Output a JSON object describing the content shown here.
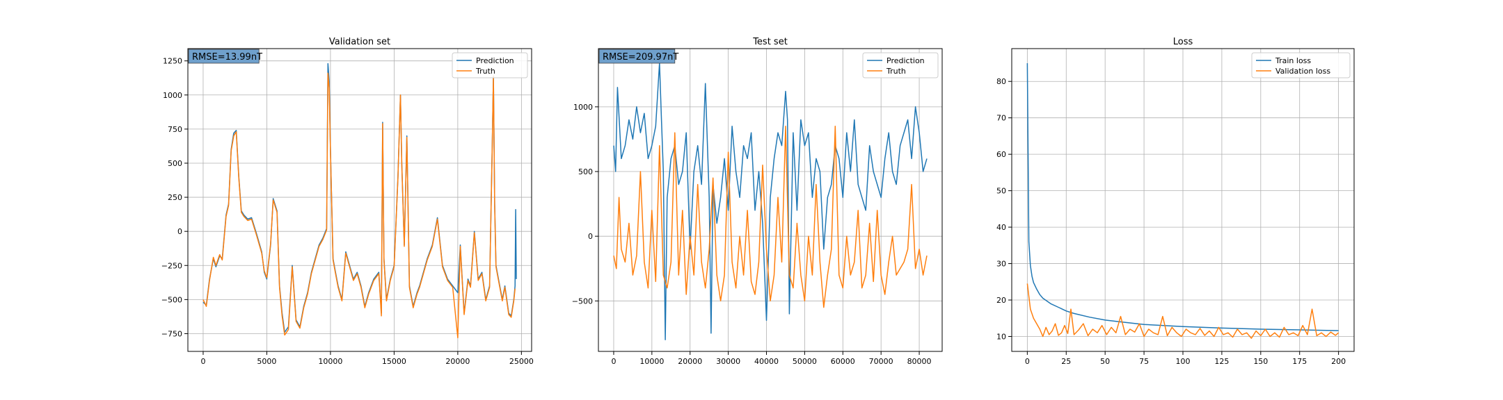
{
  "colors": {
    "blue": "#1f77b4",
    "orange": "#ff7f0e",
    "grid": "#b0b0b0",
    "rmse_box": "#6fa0cc"
  },
  "chart_data": [
    {
      "type": "line",
      "title": "Validation set",
      "xlabel": "",
      "ylabel": "",
      "xlim": [
        -1200,
        25800
      ],
      "ylim": [
        -880,
        1340
      ],
      "xticks": [
        0,
        5000,
        10000,
        15000,
        20000,
        25000
      ],
      "yticks": [
        -750,
        -500,
        -250,
        0,
        250,
        500,
        750,
        1000,
        1250
      ],
      "grid": true,
      "legend": "top-right",
      "annotation": "RMSE=13.99nT",
      "series": [
        {
          "name": "Prediction",
          "color": "#1f77b4",
          "x": [
            0,
            250,
            500,
            800,
            1000,
            1300,
            1500,
            1800,
            2000,
            2200,
            2400,
            2600,
            2800,
            3000,
            3200,
            3500,
            3800,
            4200,
            4600,
            4800,
            5000,
            5300,
            5500,
            5800,
            6000,
            6200,
            6400,
            6700,
            7000,
            7300,
            7600,
            7900,
            8200,
            8500,
            8800,
            9100,
            9400,
            9700,
            9800,
            9900,
            10000,
            10200,
            10400,
            10600,
            10900,
            11200,
            11500,
            11800,
            12100,
            12400,
            12700,
            13000,
            13400,
            13800,
            14000,
            14100,
            14200,
            14400,
            14700,
            15000,
            15300,
            15500,
            15600,
            15800,
            16000,
            16200,
            16500,
            16800,
            17000,
            17300,
            17600,
            18000,
            18400,
            18800,
            19200,
            19600,
            20000,
            20200,
            20500,
            20800,
            21000,
            21300,
            21600,
            21900,
            22200,
            22500,
            22700,
            22800,
            22900,
            23000,
            23200,
            23500,
            23700,
            24000,
            24200,
            24400,
            24500,
            24550,
            24600
          ],
          "y": [
            -520,
            -540,
            -350,
            -200,
            -260,
            -180,
            -200,
            120,
            200,
            600,
            720,
            740,
            400,
            150,
            120,
            90,
            100,
            -20,
            -150,
            -300,
            -350,
            -100,
            240,
            150,
            -400,
            -600,
            -740,
            -700,
            -250,
            -650,
            -700,
            -550,
            -450,
            -300,
            -200,
            -100,
            -50,
            20,
            1230,
            1100,
            600,
            -200,
            -300,
            -400,
            -500,
            -150,
            -250,
            -350,
            -300,
            -400,
            -550,
            -450,
            -350,
            -300,
            -600,
            800,
            -200,
            -500,
            -350,
            -250,
            400,
            1000,
            500,
            -100,
            700,
            -400,
            -550,
            -450,
            -400,
            -300,
            -200,
            -100,
            100,
            -250,
            -350,
            -400,
            -450,
            -100,
            -600,
            -350,
            -400,
            0,
            -350,
            -300,
            -500,
            -400,
            600,
            1140,
            200,
            -250,
            -350,
            -500,
            -400,
            -600,
            -620,
            -500,
            -400,
            160,
            -350
          ]
        },
        {
          "name": "Truth",
          "color": "#ff7f0e",
          "x": [
            0,
            250,
            500,
            800,
            1000,
            1300,
            1500,
            1800,
            2000,
            2200,
            2400,
            2600,
            2800,
            3000,
            3200,
            3500,
            3800,
            4200,
            4600,
            4800,
            5000,
            5300,
            5500,
            5800,
            6000,
            6200,
            6400,
            6700,
            7000,
            7300,
            7600,
            7900,
            8200,
            8500,
            8800,
            9100,
            9400,
            9700,
            9800,
            9900,
            10000,
            10200,
            10400,
            10600,
            10900,
            11200,
            11500,
            11800,
            12100,
            12400,
            12700,
            13000,
            13400,
            13800,
            14000,
            14100,
            14200,
            14400,
            14700,
            15000,
            15300,
            15500,
            15600,
            15800,
            16000,
            16200,
            16500,
            16800,
            17000,
            17300,
            17600,
            18000,
            18400,
            18800,
            19200,
            19600,
            20000,
            20200,
            20500,
            20800,
            21000,
            21300,
            21600,
            21900,
            22200,
            22500,
            22700,
            22800,
            22900,
            23000,
            23200,
            23500,
            23700,
            24000,
            24200,
            24400,
            24500
          ],
          "y": [
            -500,
            -550,
            -360,
            -190,
            -250,
            -170,
            -210,
            110,
            190,
            590,
            700,
            730,
            390,
            140,
            110,
            80,
            90,
            -30,
            -160,
            -290,
            -340,
            -90,
            230,
            140,
            -410,
            -620,
            -760,
            -720,
            -260,
            -660,
            -710,
            -560,
            -460,
            -310,
            -210,
            -110,
            -60,
            10,
            1160,
            1050,
            590,
            -210,
            -310,
            -410,
            -510,
            -160,
            -260,
            -360,
            -310,
            -410,
            -560,
            -460,
            -360,
            -310,
            -620,
            790,
            -210,
            -510,
            -360,
            -260,
            390,
            1000,
            490,
            -110,
            690,
            -410,
            -560,
            -460,
            -410,
            -310,
            -210,
            -110,
            90,
            -260,
            -360,
            -410,
            -780,
            -110,
            -610,
            -360,
            -410,
            -10,
            -360,
            -310,
            -510,
            -410,
            590,
            1140,
            190,
            -260,
            -360,
            -510,
            -410,
            -610,
            -630,
            -510,
            -420
          ]
        }
      ]
    },
    {
      "type": "line",
      "title": "Test set",
      "xlabel": "",
      "ylabel": "",
      "xlim": [
        -4000,
        86000
      ],
      "ylim": [
        -890,
        1450
      ],
      "xticks": [
        0,
        10000,
        20000,
        30000,
        40000,
        50000,
        60000,
        70000,
        80000
      ],
      "yticks": [
        -500,
        0,
        500,
        1000
      ],
      "grid": true,
      "legend": "top-right",
      "annotation": "RMSE=209.97nT",
      "series": [
        {
          "name": "Prediction",
          "color": "#1f77b4",
          "x": [
            0,
            500,
            1000,
            2000,
            3000,
            4000,
            5000,
            6000,
            7000,
            8000,
            9000,
            10000,
            11000,
            12000,
            12500,
            13000,
            13500,
            14000,
            15000,
            16000,
            17000,
            18000,
            19000,
            20000,
            21000,
            22000,
            23000,
            24000,
            25000,
            25500,
            26000,
            27000,
            28000,
            29000,
            30000,
            31000,
            32000,
            33000,
            34000,
            35000,
            36000,
            37000,
            38000,
            39000,
            40000,
            41000,
            42000,
            43000,
            44000,
            45000,
            45500,
            46000,
            47000,
            48000,
            49000,
            50000,
            51000,
            52000,
            53000,
            54000,
            55000,
            56000,
            57000,
            58000,
            59000,
            60000,
            61000,
            62000,
            63000,
            64000,
            65000,
            66000,
            67000,
            68000,
            69000,
            70000,
            71000,
            72000,
            73000,
            74000,
            75000,
            76000,
            77000,
            78000,
            79000,
            80000,
            81000,
            82000
          ],
          "y": [
            700,
            500,
            1150,
            600,
            700,
            900,
            750,
            1000,
            800,
            950,
            600,
            700,
            850,
            1340,
            900,
            500,
            -800,
            300,
            600,
            700,
            400,
            500,
            800,
            -100,
            500,
            700,
            400,
            1180,
            300,
            -750,
            400,
            100,
            300,
            600,
            200,
            850,
            500,
            300,
            700,
            600,
            800,
            200,
            500,
            100,
            -650,
            300,
            600,
            800,
            700,
            1120,
            900,
            -600,
            800,
            200,
            900,
            700,
            800,
            300,
            600,
            500,
            -100,
            300,
            400,
            700,
            600,
            300,
            800,
            500,
            900,
            400,
            300,
            200,
            700,
            500,
            400,
            300,
            600,
            800,
            500,
            400,
            700,
            800,
            900,
            600,
            1000,
            800,
            500,
            600
          ]
        },
        {
          "name": "Truth",
          "color": "#ff7f0e",
          "x": [
            0,
            700,
            1400,
            2000,
            3000,
            4000,
            5000,
            6000,
            7000,
            8000,
            9000,
            10000,
            11000,
            12000,
            13000,
            14000,
            15000,
            16000,
            17000,
            18000,
            19000,
            20000,
            21000,
            22000,
            23000,
            24000,
            25000,
            26000,
            27000,
            28000,
            29000,
            30000,
            31000,
            32000,
            33000,
            34000,
            35000,
            36000,
            37000,
            38000,
            39000,
            40000,
            41000,
            42000,
            43000,
            44000,
            45000,
            46000,
            47000,
            48000,
            49000,
            50000,
            51000,
            52000,
            53000,
            54000,
            55000,
            56000,
            57000,
            58000,
            59000,
            60000,
            61000,
            62000,
            63000,
            64000,
            65000,
            66000,
            67000,
            68000,
            69000,
            70000,
            71000,
            72000,
            73000,
            74000,
            75000,
            76000,
            77000,
            78000,
            79000,
            80000,
            81000,
            82000
          ],
          "y": [
            -150,
            -250,
            300,
            -100,
            -200,
            100,
            -300,
            -150,
            500,
            -200,
            -400,
            200,
            -350,
            700,
            -300,
            -400,
            -200,
            800,
            -300,
            200,
            -450,
            0,
            -300,
            400,
            -200,
            -400,
            -100,
            450,
            -300,
            -500,
            -300,
            650,
            -200,
            -400,
            0,
            -300,
            200,
            -350,
            -450,
            -200,
            550,
            -100,
            -500,
            -300,
            300,
            -200,
            850,
            -300,
            -400,
            100,
            -300,
            -500,
            0,
            -300,
            400,
            -200,
            -550,
            -300,
            -100,
            850,
            -300,
            -400,
            0,
            -300,
            -200,
            200,
            -400,
            -300,
            100,
            -350,
            200,
            -300,
            -450,
            -200,
            0,
            -300,
            -250,
            -200,
            -100,
            400,
            -250,
            -100,
            -300,
            -150
          ]
        }
      ]
    },
    {
      "type": "line",
      "title": "Loss",
      "xlabel": "",
      "ylabel": "",
      "xlim": [
        -10,
        210
      ],
      "ylim": [
        5.9,
        89
      ],
      "xticks": [
        0,
        25,
        50,
        75,
        100,
        125,
        150,
        175,
        200
      ],
      "yticks": [
        10,
        20,
        30,
        40,
        50,
        60,
        70,
        80
      ],
      "grid": true,
      "legend": "top-right",
      "series": [
        {
          "name": "Train loss",
          "color": "#1f77b4",
          "x": [
            0,
            1,
            2,
            3,
            4,
            6,
            8,
            10,
            15,
            20,
            25,
            30,
            40,
            50,
            60,
            75,
            100,
            125,
            150,
            175,
            200
          ],
          "y": [
            85,
            36,
            29.5,
            26.5,
            24.8,
            23,
            21.5,
            20.5,
            19,
            18,
            17,
            16.3,
            15.3,
            14.5,
            14,
            13.3,
            12.7,
            12.3,
            12,
            11.8,
            11.6
          ]
        },
        {
          "name": "Validation loss",
          "color": "#ff7f0e",
          "x": [
            0,
            2,
            4,
            6,
            8,
            10,
            12,
            14,
            16,
            18,
            20,
            22,
            24,
            26,
            28,
            30,
            33,
            36,
            39,
            42,
            45,
            48,
            51,
            54,
            57,
            60,
            63,
            66,
            69,
            72,
            75,
            78,
            81,
            84,
            87,
            90,
            93,
            96,
            99,
            102,
            105,
            108,
            111,
            114,
            117,
            120,
            123,
            126,
            129,
            132,
            135,
            138,
            141,
            144,
            147,
            150,
            153,
            156,
            159,
            162,
            165,
            168,
            171,
            174,
            177,
            180,
            183,
            186,
            189,
            192,
            195,
            198,
            200
          ],
          "y": [
            24.5,
            17.5,
            15,
            13.5,
            12,
            10,
            12.5,
            10.5,
            11.5,
            13.5,
            10.3,
            11,
            13,
            10.8,
            17.5,
            10.5,
            11.8,
            13.5,
            10.2,
            12,
            11,
            13,
            10.5,
            12.5,
            11,
            15.5,
            10.5,
            12,
            11.2,
            13.5,
            10,
            12,
            11,
            10.5,
            15.5,
            10.2,
            12.5,
            11,
            10,
            12,
            11,
            10.5,
            12.2,
            10.3,
            11.5,
            10,
            12.5,
            10.5,
            11,
            9.8,
            12,
            10.5,
            11,
            9.5,
            11.5,
            10.2,
            12,
            10,
            11,
            9.8,
            12.5,
            10.5,
            11,
            10.2,
            13,
            10.5,
            17.5,
            10.2,
            11,
            10,
            11.2,
            10.3,
            11
          ]
        }
      ]
    }
  ]
}
